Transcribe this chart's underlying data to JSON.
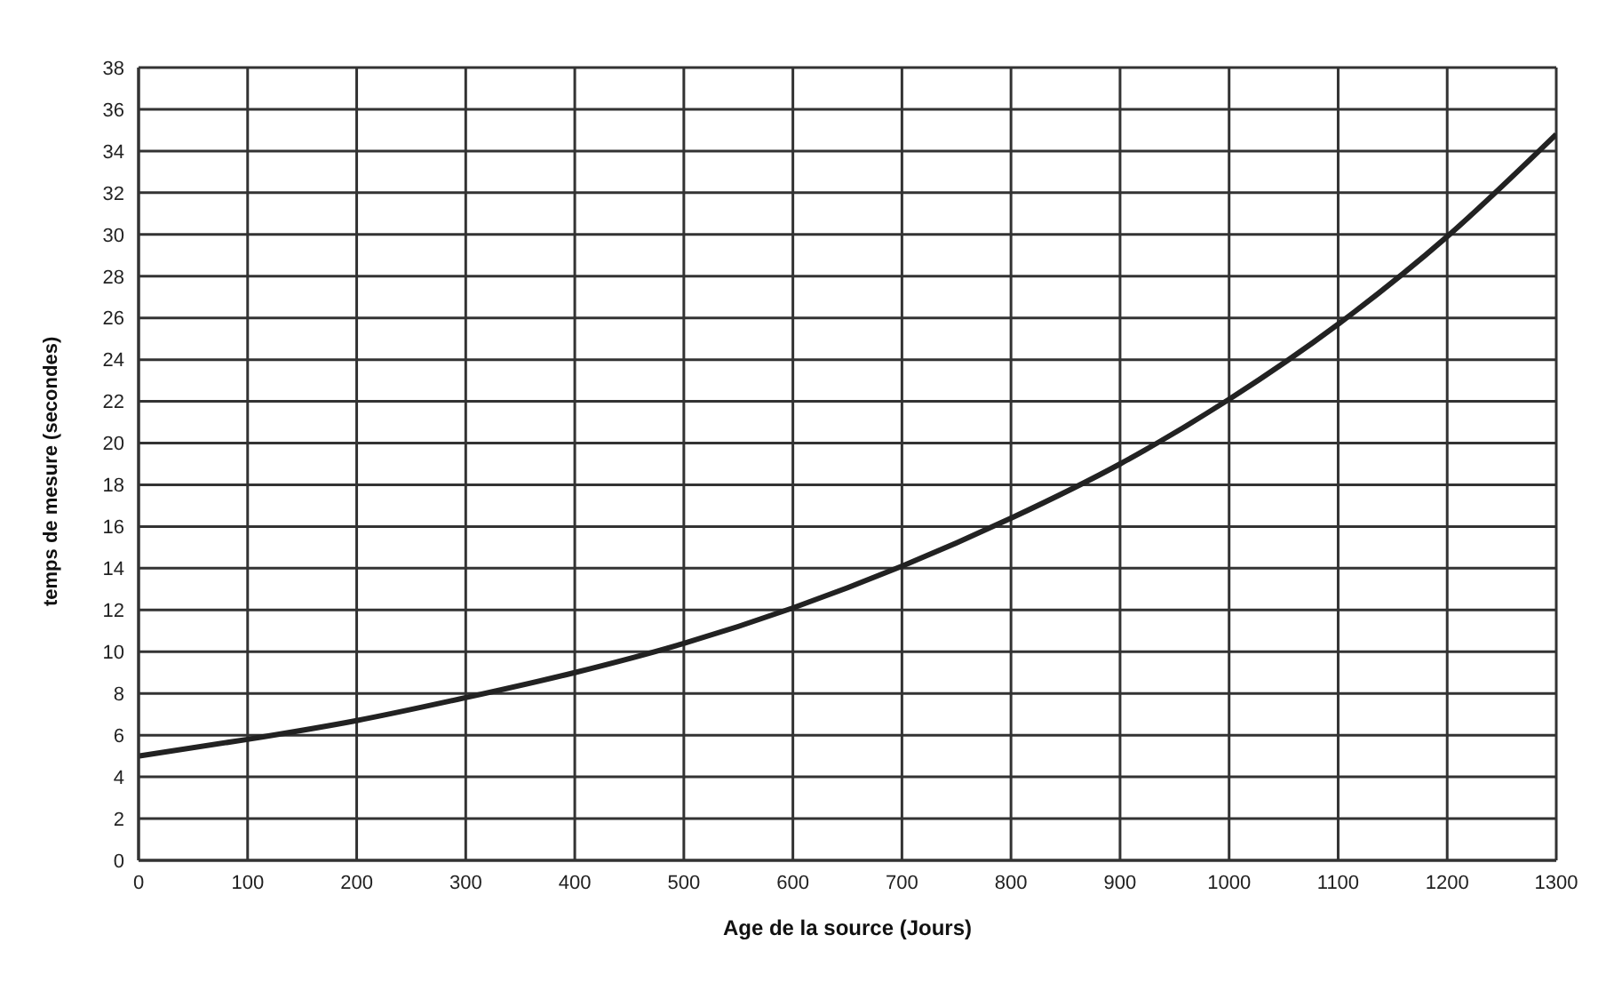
{
  "chart_data": {
    "type": "line",
    "xlabel": "Age de la source (Jours)",
    "ylabel": "temps de mesure (secondes)",
    "x": [
      0,
      100,
      200,
      300,
      400,
      500,
      600,
      700,
      800,
      900,
      1000,
      1100,
      1200,
      1300
    ],
    "series": [
      {
        "color": "#222222",
        "values": [
          5.0,
          5.8,
          6.7,
          7.8,
          9.0,
          10.4,
          12.1,
          14.1,
          16.4,
          19.0,
          22.1,
          25.7,
          29.9,
          34.8
        ]
      }
    ],
    "xlim": [
      0,
      1300
    ],
    "xticks": [
      0,
      100,
      200,
      300,
      400,
      500,
      600,
      700,
      800,
      900,
      1000,
      1100,
      1200,
      1300
    ],
    "ylim": [
      0,
      38
    ],
    "yticks": [
      0,
      2,
      4,
      6,
      8,
      10,
      12,
      14,
      16,
      18,
      20,
      22,
      24,
      26,
      28,
      30,
      32,
      34,
      36,
      38
    ],
    "grid": true,
    "legend": false,
    "marker": "none",
    "line_style": "solid"
  }
}
